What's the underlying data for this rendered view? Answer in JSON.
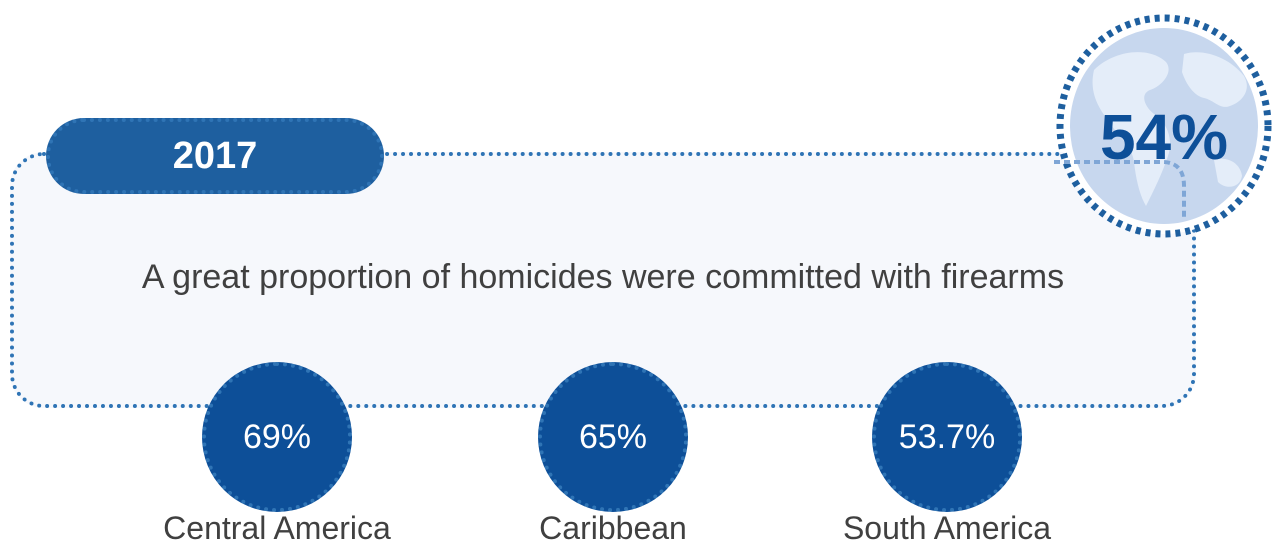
{
  "year": "2017",
  "headline": "A great proportion of homicides were committed with firearms",
  "global": {
    "value": "54%",
    "icon": "globe-icon"
  },
  "regions": [
    {
      "value": "69%",
      "label": "Central America"
    },
    {
      "value": "65%",
      "label": "Caribbean"
    },
    {
      "value": "53.7%",
      "label": "South America"
    }
  ],
  "colors": {
    "dark_blue": "#0d4f98",
    "mid_blue": "#1e5f9f",
    "dotted_blue": "#2f74b5",
    "panel_bg": "#f6f8fc",
    "globe_fill": "#c7d7ee",
    "text_gray": "#404040"
  }
}
